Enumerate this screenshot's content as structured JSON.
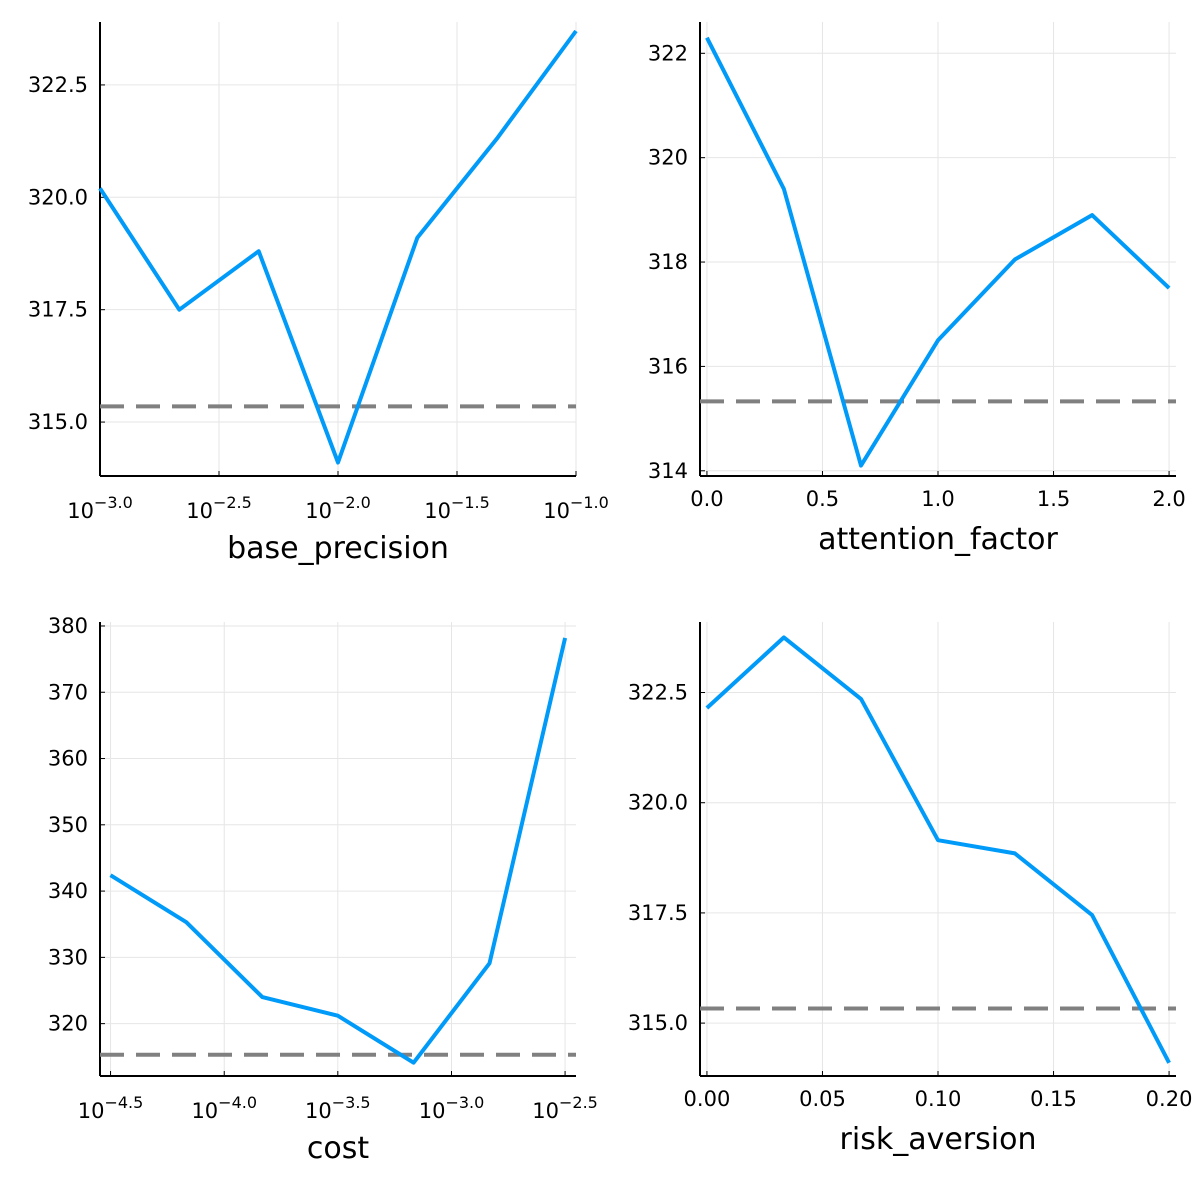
{
  "chart_data": [
    {
      "type": "line",
      "xlabel": "base_precision",
      "xscale": "log10",
      "xlim": [
        0.001,
        0.1
      ],
      "ylim": [
        313.8,
        323.9
      ],
      "x_ticks": [
        0.001,
        0.0031623,
        0.01,
        0.031623,
        0.1
      ],
      "x_tick_labels": [
        {
          "base": "10",
          "exp": "−3.0"
        },
        {
          "base": "10",
          "exp": "−2.5"
        },
        {
          "base": "10",
          "exp": "−2.0"
        },
        {
          "base": "10",
          "exp": "−1.5"
        },
        {
          "base": "10",
          "exp": "−1.0"
        }
      ],
      "y_ticks": [
        315.0,
        317.5,
        320.0,
        322.5
      ],
      "y_tick_labels": [
        "315.0",
        "317.5",
        "320.0",
        "322.5"
      ],
      "grid": true,
      "x": [
        0.001,
        0.0021544,
        0.0046416,
        0.01,
        0.021544,
        0.046416,
        0.1
      ],
      "series": [
        {
          "values": [
            320.2,
            317.5,
            318.8,
            314.1,
            319.1,
            321.3,
            323.7
          ],
          "color": "#009af9"
        }
      ],
      "reference_line": {
        "y": 315.35,
        "style": "dashed",
        "color": "#808080"
      }
    },
    {
      "type": "line",
      "xlabel": "attention_factor",
      "xscale": "linear",
      "xlim": [
        -0.03,
        2.03
      ],
      "ylim": [
        313.9,
        322.6
      ],
      "x_ticks": [
        0.0,
        0.5,
        1.0,
        1.5,
        2.0
      ],
      "x_tick_labels": [
        "0.0",
        "0.5",
        "1.0",
        "1.5",
        "2.0"
      ],
      "y_ticks": [
        314,
        316,
        318,
        320,
        322
      ],
      "y_tick_labels": [
        "314",
        "316",
        "318",
        "320",
        "322"
      ],
      "grid": true,
      "x": [
        0.0,
        0.3333,
        0.6667,
        1.0,
        1.3333,
        1.6667,
        2.0
      ],
      "series": [
        {
          "values": [
            322.3,
            319.4,
            314.1,
            316.5,
            318.05,
            318.9,
            317.5
          ],
          "color": "#009af9"
        }
      ],
      "reference_line": {
        "y": 315.33,
        "style": "dashed",
        "color": "#808080"
      }
    },
    {
      "type": "line",
      "xlabel": "cost",
      "xscale": "log10",
      "xlim": [
        2.84e-05,
        0.00353
      ],
      "ylim": [
        312.1,
        380.6
      ],
      "x_ticks": [
        3.16e-05,
        0.0001,
        0.000316,
        0.001,
        0.00316
      ],
      "x_tick_labels": [
        {
          "base": "10",
          "exp": "−4.5"
        },
        {
          "base": "10",
          "exp": "−4.0"
        },
        {
          "base": "10",
          "exp": "−3.5"
        },
        {
          "base": "10",
          "exp": "−3.0"
        },
        {
          "base": "10",
          "exp": "−2.5"
        }
      ],
      "y_ticks": [
        320,
        330,
        340,
        350,
        360,
        370,
        380
      ],
      "y_tick_labels": [
        "320",
        "330",
        "340",
        "350",
        "360",
        "370",
        "380"
      ],
      "grid": true,
      "x": [
        3.16e-05,
        6.81e-05,
        0.000147,
        0.000316,
        0.000681,
        0.00147,
        0.00316
      ],
      "series": [
        {
          "values": [
            342.4,
            335.3,
            324.0,
            321.2,
            314.1,
            329.1,
            378.2
          ],
          "color": "#009af9"
        }
      ],
      "reference_line": {
        "y": 315.3,
        "style": "dashed",
        "color": "#808080"
      }
    },
    {
      "type": "line",
      "xlabel": "risk_aversion",
      "xscale": "linear",
      "xlim": [
        -0.003,
        0.203
      ],
      "ylim": [
        313.8,
        324.1
      ],
      "x_ticks": [
        0.0,
        0.05,
        0.1,
        0.15,
        0.2
      ],
      "x_tick_labels": [
        "0.00",
        "0.05",
        "0.10",
        "0.15",
        "0.20"
      ],
      "y_ticks": [
        315.0,
        317.5,
        320.0,
        322.5
      ],
      "y_tick_labels": [
        "315.0",
        "317.5",
        "320.0",
        "322.5"
      ],
      "grid": true,
      "x": [
        0.0,
        0.0333,
        0.0667,
        0.1,
        0.1333,
        0.1667,
        0.2
      ],
      "series": [
        {
          "values": [
            322.15,
            323.75,
            322.35,
            319.15,
            318.85,
            317.45,
            314.1
          ],
          "color": "#009af9"
        }
      ],
      "reference_line": {
        "y": 315.33,
        "style": "dashed",
        "color": "#808080"
      }
    }
  ]
}
